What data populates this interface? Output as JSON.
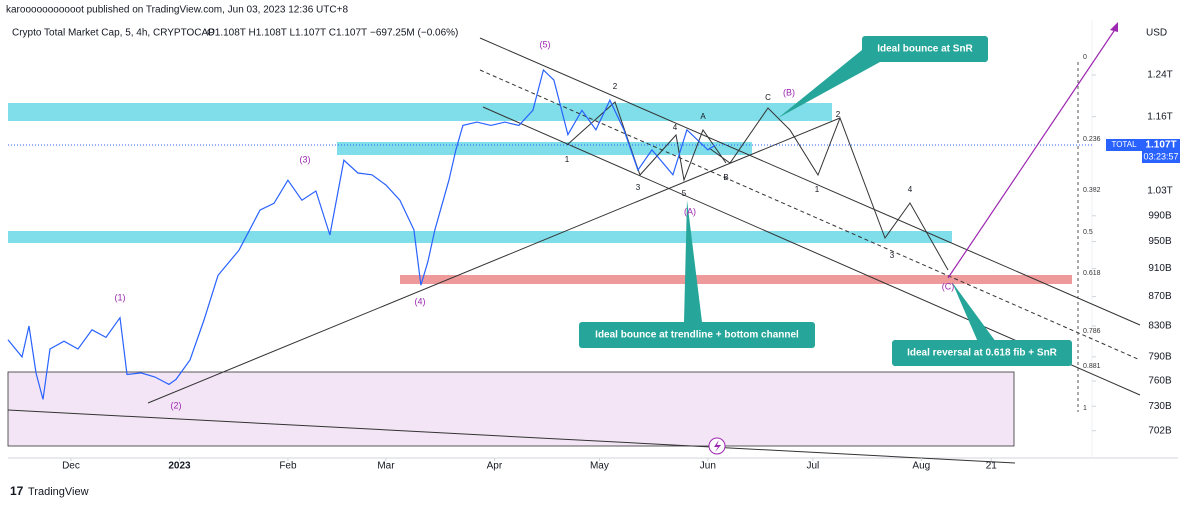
{
  "header": {
    "publisher": "karooooooooooot published on TradingView.com, Jun 03, 2023 12:36 UTC+8",
    "symbol": "Crypto Total Market Cap, 5, 4h, CRYPTOCAP",
    "ohlc": "O1.108T H1.108T L1.107T C1.107T",
    "change": "−697.25M (−0.06%)",
    "logo": "TradingView"
  },
  "chart_data": {
    "type": "line",
    "log_scale": true,
    "grid": false,
    "color": "#2962ff",
    "currency": "USD",
    "last_price": {
      "symbol": "TOTAL",
      "label": "1.107T",
      "countdown": "03:23:57"
    },
    "x": [
      0,
      2,
      3,
      4,
      5,
      6,
      8,
      10,
      12,
      14,
      16,
      17,
      19,
      21,
      23,
      24,
      26,
      28,
      30,
      33,
      36,
      38,
      40,
      42,
      44,
      46,
      48,
      50,
      52,
      54,
      56,
      58,
      59,
      60,
      61,
      63,
      64,
      65,
      67,
      69,
      71,
      73,
      75,
      76.5,
      78,
      80,
      82,
      84,
      86,
      88,
      90,
      92,
      95,
      97,
      100,
      101
    ],
    "values": [
      812,
      790,
      830,
      770,
      738,
      800,
      810,
      800,
      825,
      815,
      841,
      768,
      770,
      765,
      756,
      762,
      786,
      838,
      900,
      937,
      999,
      1010,
      1048,
      1015,
      1030,
      960,
      1082,
      1060,
      1057,
      1040,
      1015,
      968,
      886,
      920,
      968,
      1048,
      1100,
      1144,
      1150,
      1144,
      1150,
      1144,
      1172,
      1250,
      1230,
      1127,
      1172,
      1136,
      1191,
      1136,
      1065,
      1100,
      1057,
      1136,
      1100,
      1108
    ],
    "xlim": [
      0,
      154.6
    ],
    "xticks": [
      {
        "value": 9,
        "label": "Dec"
      },
      {
        "value": 24.5,
        "label": "2023"
      },
      {
        "value": 40,
        "label": "Feb"
      },
      {
        "value": 54,
        "label": "Mar"
      },
      {
        "value": 69.5,
        "label": "Apr"
      },
      {
        "value": 84.5,
        "label": "May"
      },
      {
        "value": 100,
        "label": "Jun"
      },
      {
        "value": 115,
        "label": "Jul"
      },
      {
        "value": 130.5,
        "label": "Aug"
      },
      {
        "value": 140.5,
        "label": "21"
      }
    ],
    "ylim": [
      672,
      1354
    ],
    "yticks": [
      {
        "value": 1240,
        "label": "1.24T"
      },
      {
        "value": 1160,
        "label": "1.16T"
      },
      {
        "value": 1030,
        "label": "1.03T"
      },
      {
        "value": 990,
        "label": "990B"
      },
      {
        "value": 950,
        "label": "950B"
      },
      {
        "value": 910,
        "label": "910B"
      },
      {
        "value": 870,
        "label": "870B"
      },
      {
        "value": 830,
        "label": "830B"
      },
      {
        "value": 790,
        "label": "790B"
      },
      {
        "value": 760,
        "label": "760B"
      },
      {
        "value": 730,
        "label": "730B"
      },
      {
        "value": 702,
        "label": "702B"
      }
    ],
    "annotations": {
      "waves": [
        "(5)",
        "(3)",
        "(1)",
        "(2)",
        "(4)",
        "(A)",
        "(B)",
        "(C)",
        "2",
        "1",
        "3",
        "4",
        "5",
        "A",
        "B",
        "C",
        "2",
        "1",
        "4",
        "3"
      ],
      "callouts": [
        "Ideal bounce at SnR",
        "Ideal bounce at trendline + bottom channel",
        "Ideal reversal at 0.618 fib + SnR"
      ],
      "fib_levels": [
        0,
        0.236,
        0.382,
        0.5,
        0.618,
        0.786,
        0.881,
        1
      ]
    }
  }
}
